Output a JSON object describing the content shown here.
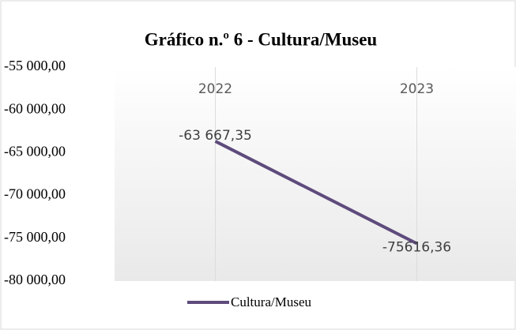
{
  "chart_data": {
    "type": "line",
    "title": "Gráfico n.º 6 - Cultura/Museu",
    "categories": [
      "2022",
      "2023"
    ],
    "series": [
      {
        "name": "Cultura/Museu",
        "color": "#5e4b7c",
        "values": [
          -63667.35,
          -75616.36
        ],
        "value_labels": [
          "-63 667,35",
          "-75616,36"
        ]
      }
    ],
    "ylim": [
      -80000,
      -55000
    ],
    "yticks": [
      {
        "value": -55000,
        "label": "-55 000,00"
      },
      {
        "value": -60000,
        "label": "-60 000,00"
      },
      {
        "value": -65000,
        "label": "-65 000,00"
      },
      {
        "value": -70000,
        "label": "-70 000,00"
      },
      {
        "value": -75000,
        "label": "-75 000,00"
      },
      {
        "value": -80000,
        "label": "-80 000,00"
      }
    ],
    "legend": "bottom"
  }
}
